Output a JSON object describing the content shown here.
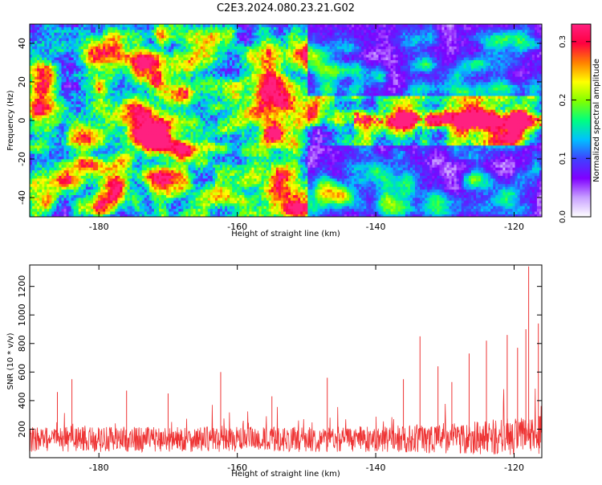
{
  "chart_data": [
    {
      "type": "heatmap",
      "title": "C2E3.2024.080.23.21.G02",
      "xlabel": "Height of straight line (km)",
      "ylabel": "Frequency (Hz)",
      "xlim": [
        -190,
        -116
      ],
      "ylim": [
        -50,
        50
      ],
      "x_ticks": [
        "-180",
        "-160",
        "-140",
        "-120"
      ],
      "x_tick_values": [
        -180,
        -160,
        -140,
        -120
      ],
      "y_ticks": [
        "-40",
        "-20",
        "0",
        "20",
        "40"
      ],
      "y_tick_values": [
        -40,
        -20,
        0,
        20,
        40
      ],
      "colorbar": {
        "label": "Normalized spectral amplitude",
        "range": [
          0.0,
          0.33
        ],
        "ticks": [
          "0.0",
          "0.1",
          "0.2",
          "0.3"
        ],
        "tick_values": [
          0.0,
          0.1,
          0.2,
          0.3
        ],
        "colors": [
          "#ffffff",
          "#c8a0ff",
          "#8000ff",
          "#4040ff",
          "#00c0ff",
          "#00ff80",
          "#80ff00",
          "#ffff00",
          "#ff8000",
          "#ff0040",
          "#ff2080"
        ]
      },
      "signal_band": {
        "x_start": -143,
        "x_end": -116,
        "freq_center_hz": 0,
        "freq_halfwidth_hz": 5,
        "peak_x": [
          -135,
          -132,
          -127,
          -123,
          -120,
          -119
        ]
      },
      "background_level": 0.07,
      "noise_fade": {
        "x_start": -150,
        "freq_hz": 35
      }
    },
    {
      "type": "line",
      "xlabel": "Height of straight line (km)",
      "ylabel": "SNR (10 * v/v)",
      "xlim": [
        -190,
        -116
      ],
      "ylim": [
        0,
        1350
      ],
      "x_ticks": [
        "-180",
        "-160",
        "-140",
        "-120"
      ],
      "x_tick_values": [
        -180,
        -160,
        -140,
        -120
      ],
      "y_ticks": [
        "200",
        "400",
        "600",
        "800",
        "1000",
        "1200"
      ],
      "y_tick_values": [
        200,
        400,
        600,
        800,
        1000,
        1200
      ],
      "series": [
        {
          "name": "SNR",
          "color": "#ee3333",
          "base_level": 150,
          "noise_amplitude": 110,
          "spikes": [
            {
              "x": -186.0,
              "y": 460
            },
            {
              "x": -183.9,
              "y": 550
            },
            {
              "x": -176.0,
              "y": 470
            },
            {
              "x": -170.0,
              "y": 450
            },
            {
              "x": -155.0,
              "y": 430
            },
            {
              "x": -162.4,
              "y": 600
            },
            {
              "x": -147.0,
              "y": 560
            },
            {
              "x": -136.0,
              "y": 550
            },
            {
              "x": -133.6,
              "y": 850
            },
            {
              "x": -131.0,
              "y": 640
            },
            {
              "x": -129.0,
              "y": 530
            },
            {
              "x": -126.5,
              "y": 730
            },
            {
              "x": -124.0,
              "y": 820
            },
            {
              "x": -121.0,
              "y": 860
            },
            {
              "x": -119.5,
              "y": 770
            },
            {
              "x": -118.3,
              "y": 900
            },
            {
              "x": -117.9,
              "y": 1340
            },
            {
              "x": -116.5,
              "y": 940
            }
          ]
        }
      ]
    }
  ]
}
